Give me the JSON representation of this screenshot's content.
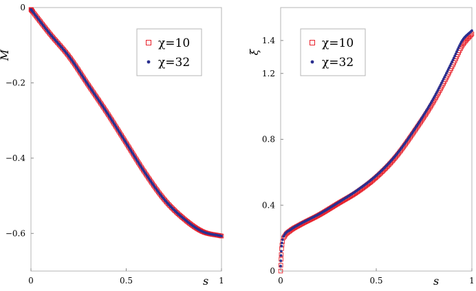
{
  "chart_data": [
    {
      "type": "scatter",
      "xlabel": "s",
      "ylabel": "M",
      "xlim": [
        0,
        1
      ],
      "ylim": [
        -0.7,
        0
      ],
      "xticks": [
        0,
        0.5,
        1
      ],
      "xtick_labels": [
        "0",
        "0.5",
        "1"
      ],
      "yticks": [
        0,
        -0.2,
        -0.4,
        -0.6
      ],
      "ytick_labels": [
        "0",
        "−0.2",
        "−0.4",
        "−0.6"
      ],
      "grid": false,
      "legend_position": "top-right",
      "series": [
        {
          "name": "χ=10",
          "marker": "open-square",
          "color": "#e8202a",
          "x": [
            0,
            0.1,
            0.2,
            0.3,
            0.4,
            0.5,
            0.6,
            0.7,
            0.8,
            0.9,
            1.0
          ],
          "y": [
            -0.005,
            -0.07,
            -0.13,
            -0.205,
            -0.28,
            -0.36,
            -0.44,
            -0.51,
            -0.56,
            -0.595,
            -0.607
          ]
        },
        {
          "name": "χ=32",
          "marker": "filled-dot",
          "color": "#2a2f8f",
          "x": [
            0,
            0.1,
            0.2,
            0.3,
            0.4,
            0.5,
            0.6,
            0.7,
            0.8,
            0.9,
            1.0
          ],
          "y": [
            -0.005,
            -0.07,
            -0.13,
            -0.205,
            -0.28,
            -0.36,
            -0.44,
            -0.51,
            -0.56,
            -0.595,
            -0.607
          ]
        }
      ]
    },
    {
      "type": "scatter",
      "xlabel": "s",
      "ylabel": "ξ",
      "xlim": [
        0,
        1
      ],
      "ylim": [
        0,
        1.6
      ],
      "xticks": [
        0,
        0.5,
        1
      ],
      "xtick_labels": [
        "0",
        "0.5",
        "1"
      ],
      "yticks": [
        0,
        0.4,
        0.8,
        1.2,
        1.4
      ],
      "ytick_labels": [
        "0",
        "0.4",
        "0.8",
        "1.2",
        "1.4"
      ],
      "grid": false,
      "legend_position": "top-left",
      "series": [
        {
          "name": "χ=10",
          "marker": "open-square",
          "color": "#e8202a",
          "x": [
            0,
            0.003,
            0.01,
            0.02,
            0.05,
            0.1,
            0.2,
            0.3,
            0.4,
            0.5,
            0.6,
            0.7,
            0.8,
            0.9,
            0.95,
            1.0
          ],
          "y": [
            0.0,
            0.1,
            0.18,
            0.21,
            0.245,
            0.28,
            0.34,
            0.41,
            0.48,
            0.57,
            0.69,
            0.85,
            1.03,
            1.25,
            1.37,
            1.44
          ]
        },
        {
          "name": "χ=32",
          "marker": "filled-dot",
          "color": "#2a2f8f",
          "x": [
            0,
            0.003,
            0.01,
            0.02,
            0.05,
            0.1,
            0.2,
            0.3,
            0.4,
            0.5,
            0.6,
            0.7,
            0.8,
            0.9,
            0.95,
            1.0
          ],
          "y": [
            0.03,
            0.12,
            0.19,
            0.22,
            0.25,
            0.285,
            0.345,
            0.415,
            0.49,
            0.58,
            0.7,
            0.86,
            1.05,
            1.28,
            1.4,
            1.46
          ]
        }
      ]
    }
  ]
}
